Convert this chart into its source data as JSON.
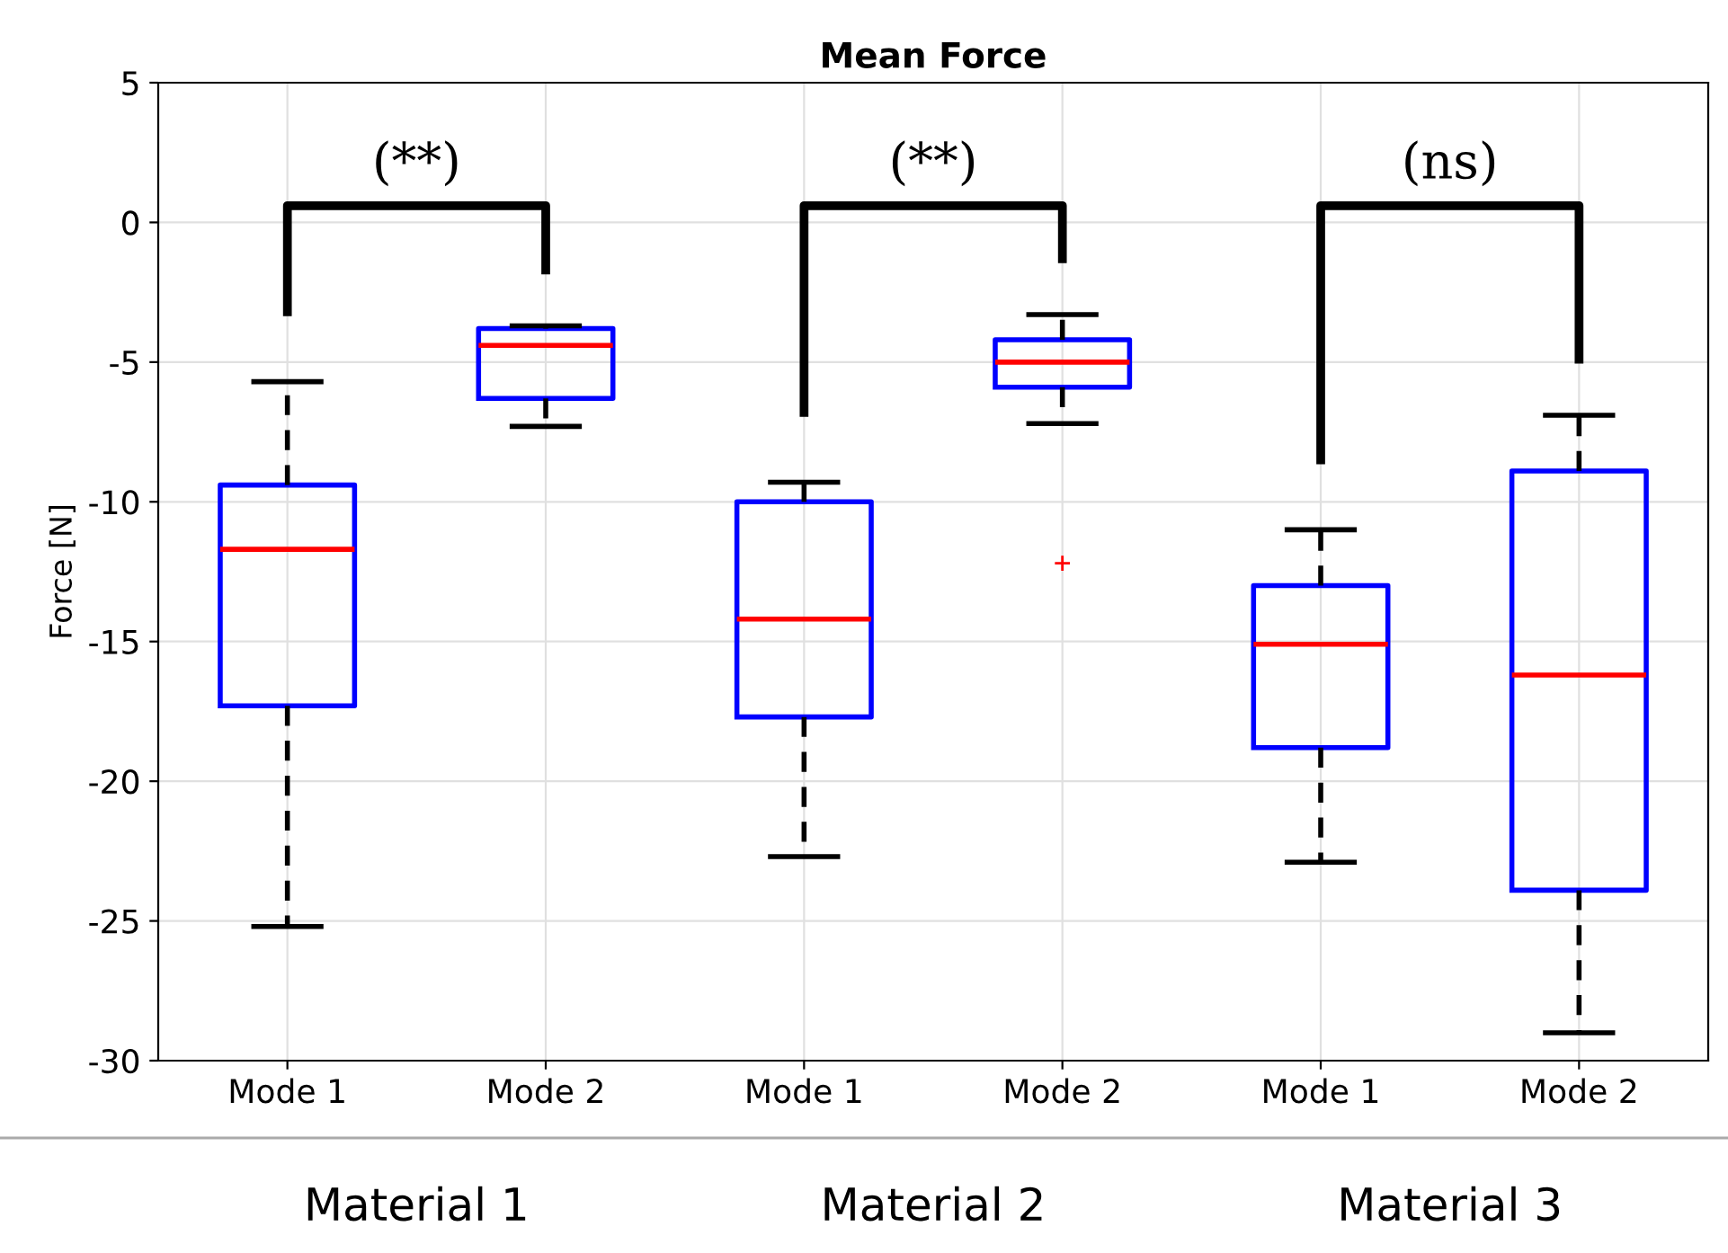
{
  "chart_data": {
    "type": "box",
    "title": "Mean Force",
    "ylabel": "Force [N]",
    "categories": [
      "Mode 1",
      "Mode 2",
      "Mode 1",
      "Mode 2",
      "Mode 1",
      "Mode 2"
    ],
    "boxes": [
      {
        "low": -25.2,
        "q1": -17.3,
        "median": -11.7,
        "q3": -9.4,
        "high": -5.7
      },
      {
        "low": -7.3,
        "q1": -6.3,
        "median": -4.4,
        "q3": -3.8,
        "high": -3.7
      },
      {
        "low": -22.7,
        "q1": -17.7,
        "median": -14.2,
        "q3": -10.0,
        "high": -9.3
      },
      {
        "low": -7.2,
        "q1": -5.9,
        "median": -5.0,
        "q3": -4.2,
        "high": -3.3,
        "outliers": [
          -12.2
        ]
      },
      {
        "low": -22.9,
        "q1": -18.8,
        "median": -15.1,
        "q3": -13.0,
        "high": -11.0
      },
      {
        "low": -29.0,
        "q1": -23.9,
        "median": -16.2,
        "q3": -8.9,
        "high": -6.9
      }
    ],
    "color": "#0000ff",
    "ylim": [
      -30,
      5
    ],
    "yticks": [
      -30,
      -25,
      -20,
      -15,
      -10,
      -5,
      0,
      5
    ],
    "grid": true,
    "annotations": [
      "(**)",
      "(**)",
      "(ns)",
      "Material 1",
      "Material 2",
      "Material 3"
    ]
  }
}
